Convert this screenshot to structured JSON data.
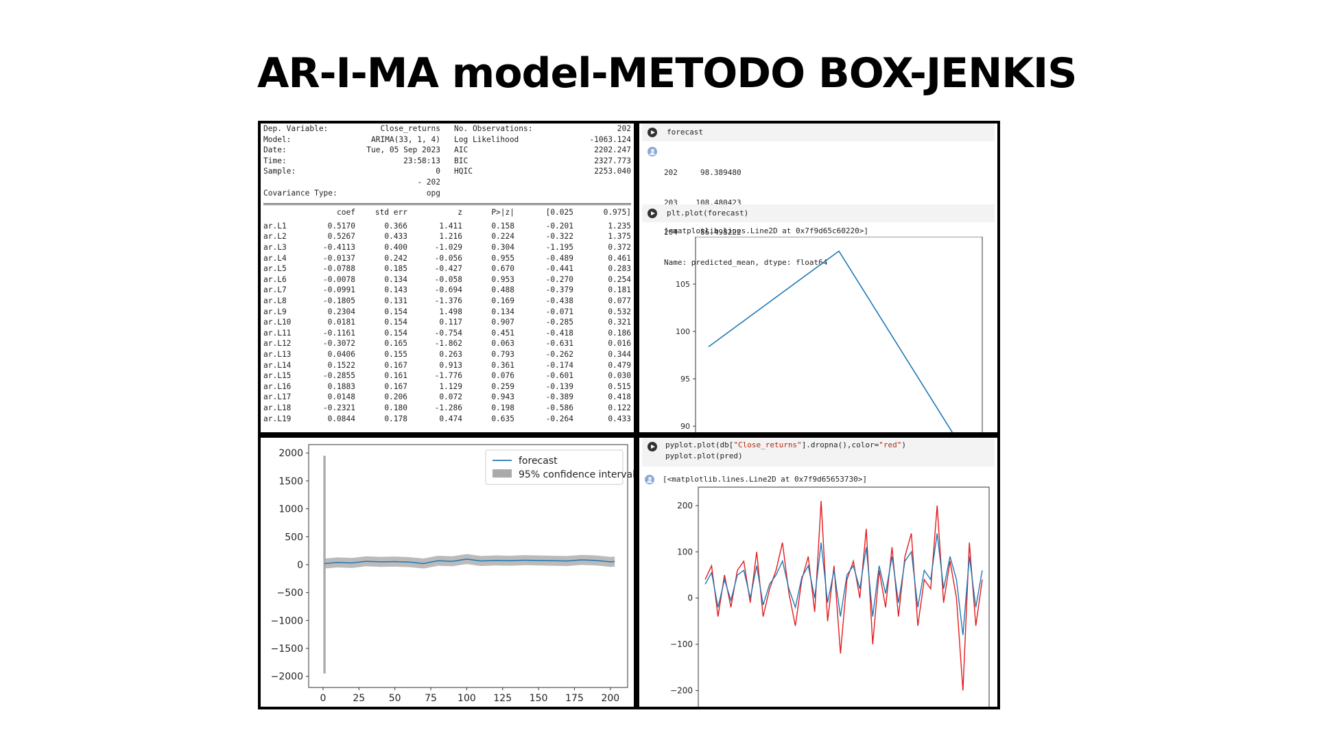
{
  "title": "AR-I-MA model-METODO BOX-JENKIS",
  "summary": {
    "header_left": [
      [
        "Dep. Variable:",
        "Close_returns"
      ],
      [
        "Model:",
        "ARIMA(33, 1, 4)"
      ],
      [
        "Date:",
        "Tue, 05 Sep 2023"
      ],
      [
        "Time:",
        "23:58:13"
      ],
      [
        "Sample:",
        "0"
      ],
      [
        "",
        "- 202"
      ],
      [
        "Covariance Type:",
        "opg"
      ]
    ],
    "header_right": [
      [
        "No. Observations:",
        "202"
      ],
      [
        "Log Likelihood",
        "-1063.124"
      ],
      [
        "AIC",
        "2202.247"
      ],
      [
        "BIC",
        "2327.773"
      ],
      [
        "HQIC",
        "2253.040"
      ]
    ],
    "columns": [
      "coef",
      "std err",
      "z",
      "P>|z|",
      "[0.025",
      "0.975]"
    ],
    "rows": [
      [
        "ar.L1",
        "0.5170",
        "0.366",
        "1.411",
        "0.158",
        "-0.201",
        "1.235"
      ],
      [
        "ar.L2",
        "0.5267",
        "0.433",
        "1.216",
        "0.224",
        "-0.322",
        "1.375"
      ],
      [
        "ar.L3",
        "-0.4113",
        "0.400",
        "-1.029",
        "0.304",
        "-1.195",
        "0.372"
      ],
      [
        "ar.L4",
        "-0.0137",
        "0.242",
        "-0.056",
        "0.955",
        "-0.489",
        "0.461"
      ],
      [
        "ar.L5",
        "-0.0788",
        "0.185",
        "-0.427",
        "0.670",
        "-0.441",
        "0.283"
      ],
      [
        "ar.L6",
        "-0.0078",
        "0.134",
        "-0.058",
        "0.953",
        "-0.270",
        "0.254"
      ],
      [
        "ar.L7",
        "-0.0991",
        "0.143",
        "-0.694",
        "0.488",
        "-0.379",
        "0.181"
      ],
      [
        "ar.L8",
        "-0.1805",
        "0.131",
        "-1.376",
        "0.169",
        "-0.438",
        "0.077"
      ],
      [
        "ar.L9",
        "0.2304",
        "0.154",
        "1.498",
        "0.134",
        "-0.071",
        "0.532"
      ],
      [
        "ar.L10",
        "0.0181",
        "0.154",
        "0.117",
        "0.907",
        "-0.285",
        "0.321"
      ],
      [
        "ar.L11",
        "-0.1161",
        "0.154",
        "-0.754",
        "0.451",
        "-0.418",
        "0.186"
      ],
      [
        "ar.L12",
        "-0.3072",
        "0.165",
        "-1.862",
        "0.063",
        "-0.631",
        "0.016"
      ],
      [
        "ar.L13",
        "0.0406",
        "0.155",
        "0.263",
        "0.793",
        "-0.262",
        "0.344"
      ],
      [
        "ar.L14",
        "0.1522",
        "0.167",
        "0.913",
        "0.361",
        "-0.174",
        "0.479"
      ],
      [
        "ar.L15",
        "-0.2855",
        "0.161",
        "-1.776",
        "0.076",
        "-0.601",
        "0.030"
      ],
      [
        "ar.L16",
        "0.1883",
        "0.167",
        "1.129",
        "0.259",
        "-0.139",
        "0.515"
      ],
      [
        "ar.L17",
        "0.0148",
        "0.206",
        "0.072",
        "0.943",
        "-0.389",
        "0.418"
      ],
      [
        "ar.L18",
        "-0.2321",
        "0.180",
        "-1.286",
        "0.198",
        "-0.586",
        "0.122"
      ],
      [
        "ar.L19",
        "0.0844",
        "0.178",
        "0.474",
        "0.635",
        "-0.264",
        "0.433"
      ]
    ]
  },
  "cells": {
    "forecast_cell": {
      "code": "forecast",
      "output_lines": [
        "202     98.389480",
        "203    108.480423",
        "204     86.498222",
        "Name: predicted_mean, dtype: float64"
      ]
    },
    "plot_cell": {
      "code": "plt.plot(forecast)",
      "output": "[<matplotlib.lines.Line2D at 0x7f9d65c60220>]"
    },
    "pred_cell": {
      "code_line1_a": "pyplot.plot(db[",
      "code_line1_str1": "\"Close_returns\"",
      "code_line1_b": "].dropna(),color=",
      "code_line1_str2": "\"red\"",
      "code_line1_c": ")",
      "code_line2": "pyplot.plot(pred)",
      "output": "[<matplotlib.lines.Line2D at 0x7f9d65653730>]"
    }
  },
  "colors": {
    "blue": "#1f77b4",
    "red": "#e31a1c",
    "band": "#aaaaaa"
  },
  "chart_data": [
    {
      "id": "forecast_plot",
      "type": "line",
      "x": [
        202,
        203,
        204
      ],
      "values": [
        98.38948,
        108.480423,
        86.498222
      ],
      "yticks": [
        90,
        95,
        100,
        105
      ],
      "ylim": [
        89,
        110
      ],
      "xlim": [
        201.9,
        204.1
      ]
    },
    {
      "id": "ci_plot",
      "type": "line",
      "yticks": [
        2000,
        1500,
        1000,
        500,
        0,
        -500,
        -1000,
        -1500,
        -2000
      ],
      "xticks": [
        0,
        25,
        50,
        75,
        100,
        125,
        150,
        175,
        200
      ],
      "xlim": [
        -10,
        212
      ],
      "ylim": [
        -2200,
        2150
      ],
      "legend": [
        "forecast",
        "95% confidence interval"
      ],
      "legend_position": "upper-right",
      "series_x": [
        1,
        10,
        20,
        30,
        40,
        50,
        60,
        70,
        80,
        90,
        100,
        110,
        120,
        130,
        140,
        150,
        160,
        170,
        180,
        190,
        200,
        203
      ],
      "series_y": [
        20,
        40,
        30,
        60,
        50,
        55,
        45,
        20,
        70,
        60,
        100,
        65,
        75,
        70,
        80,
        75,
        70,
        65,
        85,
        75,
        50,
        55
      ],
      "spike": {
        "x": 1,
        "high": 1950,
        "low": -1950
      },
      "band_halfwidth": 90
    },
    {
      "id": "pred_plot",
      "type": "line",
      "yticks": [
        200,
        100,
        0,
        -100,
        -200
      ],
      "ylim": [
        -235,
        240
      ],
      "xlim": [
        0,
        120
      ],
      "series": [
        {
          "color": "red",
          "values": [
            40,
            70,
            -40,
            50,
            -20,
            60,
            80,
            -10,
            100,
            -40,
            20,
            60,
            120,
            10,
            -60,
            40,
            90,
            -30,
            210,
            -50,
            70,
            -120,
            40,
            80,
            0,
            150,
            -100,
            60,
            -20,
            110,
            -40,
            90,
            140,
            -60,
            40,
            20,
            200,
            -10,
            80,
            0,
            -200,
            120,
            -60,
            40
          ]
        },
        {
          "color": "blue",
          "values": [
            30,
            55,
            -20,
            40,
            -5,
            50,
            60,
            0,
            70,
            -15,
            30,
            50,
            80,
            20,
            -20,
            45,
            70,
            0,
            120,
            -10,
            60,
            -40,
            50,
            70,
            20,
            110,
            -40,
            70,
            10,
            90,
            -10,
            80,
            100,
            -20,
            60,
            40,
            140,
            20,
            90,
            40,
            -80,
            90,
            -20,
            60
          ]
        }
      ]
    }
  ]
}
